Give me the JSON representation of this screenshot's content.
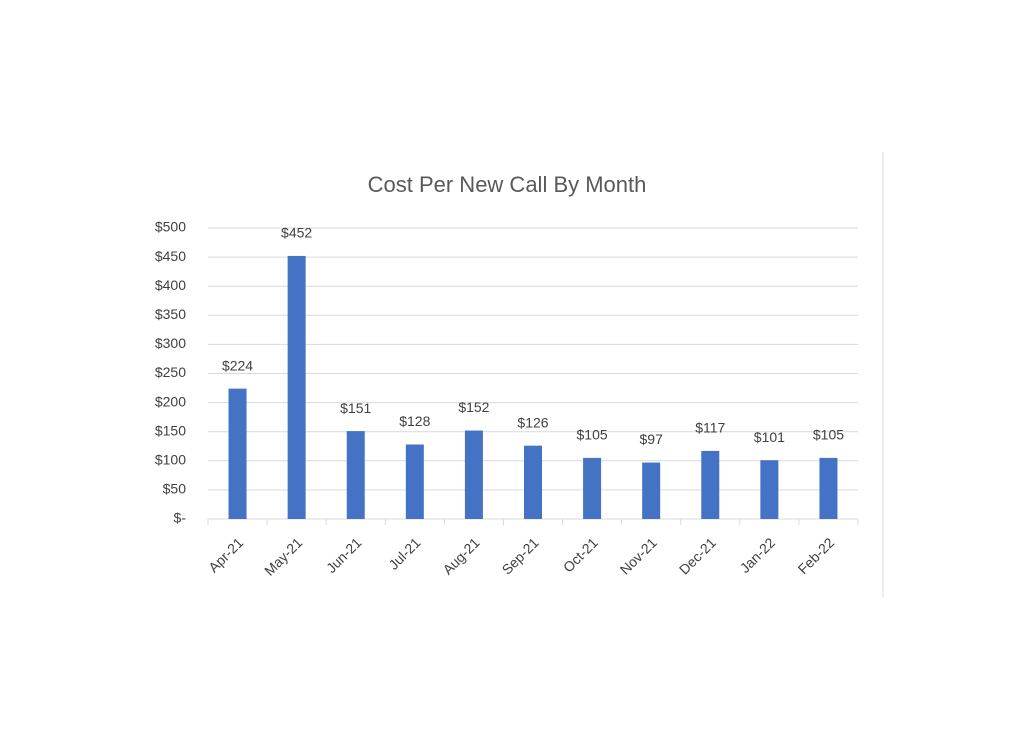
{
  "chart_data": {
    "type": "bar",
    "title": "Cost Per New Call By Month",
    "categories": [
      "Apr-21",
      "May-21",
      "Jun-21",
      "Jul-21",
      "Aug-21",
      "Sep-21",
      "Oct-21",
      "Nov-21",
      "Dec-21",
      "Jan-22",
      "Feb-22"
    ],
    "values": [
      224,
      452,
      151,
      128,
      152,
      126,
      105,
      97,
      117,
      101,
      105
    ],
    "value_labels": [
      "$224",
      "$452",
      "$151",
      "$128",
      "$152",
      "$126",
      "$105",
      "$97",
      "$117",
      "$101",
      "$105"
    ],
    "color": "#4472c4",
    "ylim": [
      0,
      500
    ],
    "yticks": [
      {
        "value": 0,
        "label": "$-"
      },
      {
        "value": 50,
        "label": "$50"
      },
      {
        "value": 100,
        "label": "$100"
      },
      {
        "value": 150,
        "label": "$150"
      },
      {
        "value": 200,
        "label": "$200"
      },
      {
        "value": 250,
        "label": "$250"
      },
      {
        "value": 300,
        "label": "$300"
      },
      {
        "value": 350,
        "label": "$350"
      },
      {
        "value": 400,
        "label": "$400"
      },
      {
        "value": 450,
        "label": "$450"
      },
      {
        "value": 500,
        "label": "$500"
      }
    ],
    "grid": true
  }
}
